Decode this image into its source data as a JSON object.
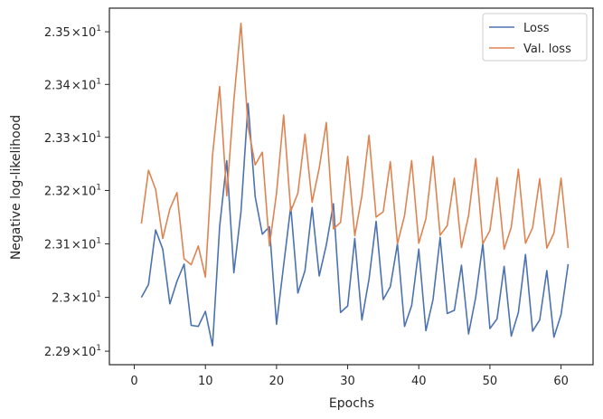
{
  "chart_data": {
    "type": "line",
    "title": "",
    "xlabel": "Epochs",
    "ylabel": "Negative log-likelihood",
    "x_scale": "linear",
    "y_scale": "log",
    "xlim": [
      -3.5,
      64.5
    ],
    "ylim": [
      22.875,
      23.545
    ],
    "grid": false,
    "legend_position": "top-right",
    "x_ticks": [
      0,
      10,
      20,
      30,
      40,
      50,
      60
    ],
    "x_tick_labels": [
      "0",
      "10",
      "20",
      "30",
      "40",
      "50",
      "60"
    ],
    "y_ticks": [
      {
        "value": 22.9,
        "mantissa": "2.29",
        "times": "×",
        "base": "10",
        "exponent": "1"
      },
      {
        "value": 23.0,
        "mantissa": "2.3",
        "times": "×",
        "base": "10",
        "exponent": "1"
      },
      {
        "value": 23.1,
        "mantissa": "2.31",
        "times": "×",
        "base": "10",
        "exponent": "1"
      },
      {
        "value": 23.2,
        "mantissa": "2.32",
        "times": "×",
        "base": "10",
        "exponent": "1"
      },
      {
        "value": 23.3,
        "mantissa": "2.33",
        "times": "×",
        "base": "10",
        "exponent": "1"
      },
      {
        "value": 23.4,
        "mantissa": "2.34",
        "times": "×",
        "base": "10",
        "exponent": "1"
      },
      {
        "value": 23.5,
        "mantissa": "2.35",
        "times": "×",
        "base": "10",
        "exponent": "1"
      }
    ],
    "x": [
      1,
      2,
      3,
      4,
      5,
      6,
      7,
      8,
      9,
      10,
      11,
      12,
      13,
      14,
      15,
      16,
      17,
      18,
      19,
      20,
      21,
      22,
      23,
      24,
      25,
      26,
      27,
      28,
      29,
      30,
      31,
      32,
      33,
      34,
      35,
      36,
      37,
      38,
      39,
      40,
      41,
      42,
      43,
      44,
      45,
      46,
      47,
      48,
      49,
      50,
      51,
      52,
      53,
      54,
      55,
      56,
      57,
      58,
      59,
      60,
      61
    ],
    "series": [
      {
        "name": "Loss",
        "color": "#4c72b0",
        "values": [
          23.0,
          23.024,
          23.126,
          23.09,
          22.988,
          23.03,
          23.062,
          22.948,
          22.946,
          22.974,
          22.91,
          23.132,
          23.256,
          23.046,
          23.16,
          23.364,
          23.188,
          23.118,
          23.132,
          22.95,
          23.06,
          23.17,
          23.008,
          23.05,
          23.168,
          23.04,
          23.098,
          23.175,
          22.972,
          22.984,
          23.11,
          22.958,
          23.034,
          23.142,
          22.996,
          23.02,
          23.1,
          22.946,
          22.985,
          23.09,
          22.938,
          22.996,
          23.112,
          22.97,
          22.976,
          23.06,
          22.932,
          23.0,
          23.1,
          22.942,
          22.96,
          23.058,
          22.928,
          22.972,
          23.08,
          22.937,
          22.958,
          23.05,
          22.926,
          22.968,
          23.062
        ]
      },
      {
        "name": "Val. loss",
        "color": "#dd8452",
        "values": [
          23.138,
          23.238,
          23.202,
          23.11,
          23.165,
          23.196,
          23.072,
          23.061,
          23.096,
          23.038,
          23.266,
          23.396,
          23.19,
          23.37,
          23.516,
          23.32,
          23.248,
          23.272,
          23.096,
          23.195,
          23.342,
          23.161,
          23.195,
          23.306,
          23.178,
          23.242,
          23.328,
          23.128,
          23.14,
          23.264,
          23.115,
          23.19,
          23.304,
          23.15,
          23.16,
          23.254,
          23.1,
          23.153,
          23.256,
          23.101,
          23.147,
          23.264,
          23.116,
          23.134,
          23.223,
          23.093,
          23.153,
          23.26,
          23.1,
          23.125,
          23.224,
          23.09,
          23.131,
          23.24,
          23.101,
          23.13,
          23.222,
          23.092,
          23.12,
          23.223,
          23.092
        ]
      }
    ]
  }
}
